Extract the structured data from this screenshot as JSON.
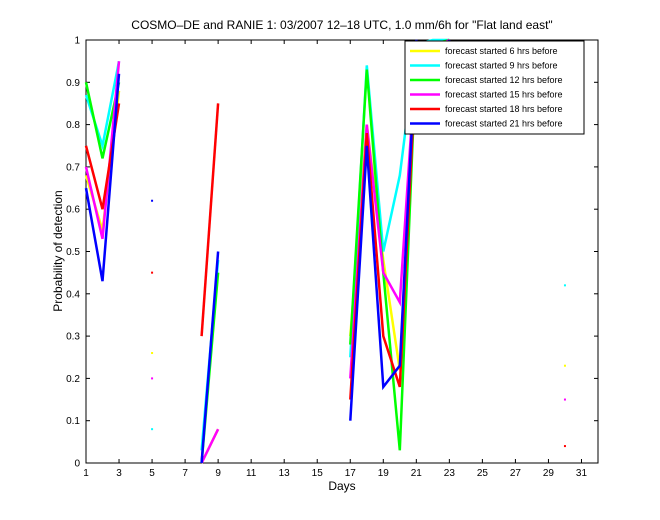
{
  "chart_data": {
    "type": "line",
    "title": "COSMO–DE and RANIE 1: 03/2007 12–18 UTC, 1.0 mm/6h for \"Flat land east\"",
    "xlabel": "Days",
    "ylabel": "Probability of detection",
    "xlim": [
      1,
      32
    ],
    "ylim": [
      0,
      1
    ],
    "xticks": [
      1,
      3,
      5,
      7,
      9,
      11,
      13,
      15,
      17,
      19,
      21,
      23,
      25,
      27,
      29,
      31
    ],
    "yticks": [
      0,
      0.1,
      0.2,
      0.3,
      0.4,
      0.5,
      0.6,
      0.7,
      0.8,
      0.9,
      1
    ],
    "ytick_labels": [
      "0",
      "0.1",
      "0.2",
      "0.3",
      "0.4",
      "0.5",
      "0.6",
      "0.7",
      "0.8",
      "0.9",
      "1"
    ],
    "grid": false,
    "legend_position": "top-right",
    "series": [
      {
        "name": "forecast started 6 hrs before",
        "color": "#ffff00",
        "points": [
          [
            1,
            0.68
          ],
          [
            2,
            0.55
          ],
          [
            3,
            0.88
          ],
          [
            null,
            null
          ],
          [
            8,
            0.0
          ],
          [
            9,
            0.08
          ],
          [
            null,
            null
          ],
          [
            17,
            0.3
          ],
          [
            18,
            0.8
          ],
          [
            19,
            0.48
          ],
          [
            20,
            0.22
          ],
          [
            21,
            0.98
          ],
          [
            22,
            0.99
          ],
          [
            23,
            1.0
          ]
        ],
        "dots": [
          [
            5,
            0.26
          ],
          [
            30,
            0.23
          ]
        ]
      },
      {
        "name": "forecast started 9 hrs before",
        "color": "#00ffff",
        "points": [
          [
            1,
            0.87
          ],
          [
            2,
            0.75
          ],
          [
            3,
            0.95
          ],
          [
            null,
            null
          ],
          [
            8,
            0.03
          ],
          [
            9,
            0.48
          ],
          [
            null,
            null
          ],
          [
            17,
            0.25
          ],
          [
            18,
            0.94
          ],
          [
            19,
            0.5
          ],
          [
            20,
            0.68
          ],
          [
            21,
            0.99
          ],
          [
            22,
            1.0
          ],
          [
            23,
            1.0
          ]
        ],
        "dots": [
          [
            5,
            0.08
          ],
          [
            30,
            0.42
          ]
        ]
      },
      {
        "name": "forecast started 12 hrs before",
        "color": "#00ff00",
        "points": [
          [
            1,
            0.9
          ],
          [
            2,
            0.72
          ],
          [
            3,
            0.9
          ],
          [
            null,
            null
          ],
          [
            8,
            0.0
          ],
          [
            9,
            0.45
          ],
          [
            null,
            null
          ],
          [
            17,
            0.28
          ],
          [
            18,
            0.93
          ],
          [
            19,
            0.45
          ],
          [
            20,
            0.03
          ],
          [
            21,
            0.97
          ],
          [
            22,
            0.99
          ],
          [
            23,
            1.0
          ]
        ],
        "dots": []
      },
      {
        "name": "forecast started 15 hrs before",
        "color": "#ff00ff",
        "points": [
          [
            1,
            0.7
          ],
          [
            2,
            0.53
          ],
          [
            3,
            0.95
          ],
          [
            null,
            null
          ],
          [
            8,
            0.0
          ],
          [
            9,
            0.08
          ],
          [
            null,
            null
          ],
          [
            17,
            0.2
          ],
          [
            18,
            0.8
          ],
          [
            19,
            0.45
          ],
          [
            20,
            0.38
          ],
          [
            21,
            0.97
          ],
          [
            22,
            0.98
          ],
          [
            23,
            1.0
          ]
        ],
        "dots": [
          [
            5,
            0.2
          ],
          [
            30,
            0.15
          ]
        ]
      },
      {
        "name": "forecast started 18 hrs before",
        "color": "#ff0000",
        "points": [
          [
            1,
            0.75
          ],
          [
            2,
            0.6
          ],
          [
            3,
            0.85
          ],
          [
            null,
            null
          ],
          [
            8,
            0.3
          ],
          [
            9,
            0.85
          ],
          [
            null,
            null
          ],
          [
            17,
            0.15
          ],
          [
            18,
            0.78
          ],
          [
            19,
            0.3
          ],
          [
            20,
            0.18
          ],
          [
            21,
            0.96
          ],
          [
            22,
            0.92
          ],
          [
            23,
            1.0
          ]
        ],
        "dots": [
          [
            5,
            0.45
          ],
          [
            30,
            0.04
          ]
        ]
      },
      {
        "name": "forecast started 21 hrs before",
        "color": "#0000ff",
        "points": [
          [
            1,
            0.65
          ],
          [
            2,
            0.43
          ],
          [
            3,
            0.92
          ],
          [
            null,
            null
          ],
          [
            8,
            0.0
          ],
          [
            9,
            0.5
          ],
          [
            null,
            null
          ],
          [
            17,
            0.1
          ],
          [
            18,
            0.75
          ],
          [
            19,
            0.18
          ],
          [
            20,
            0.23
          ],
          [
            21,
            1.0
          ],
          [
            22,
            0.82
          ],
          [
            23,
            1.0
          ]
        ],
        "dots": [
          [
            5,
            0.62
          ]
        ]
      }
    ]
  }
}
